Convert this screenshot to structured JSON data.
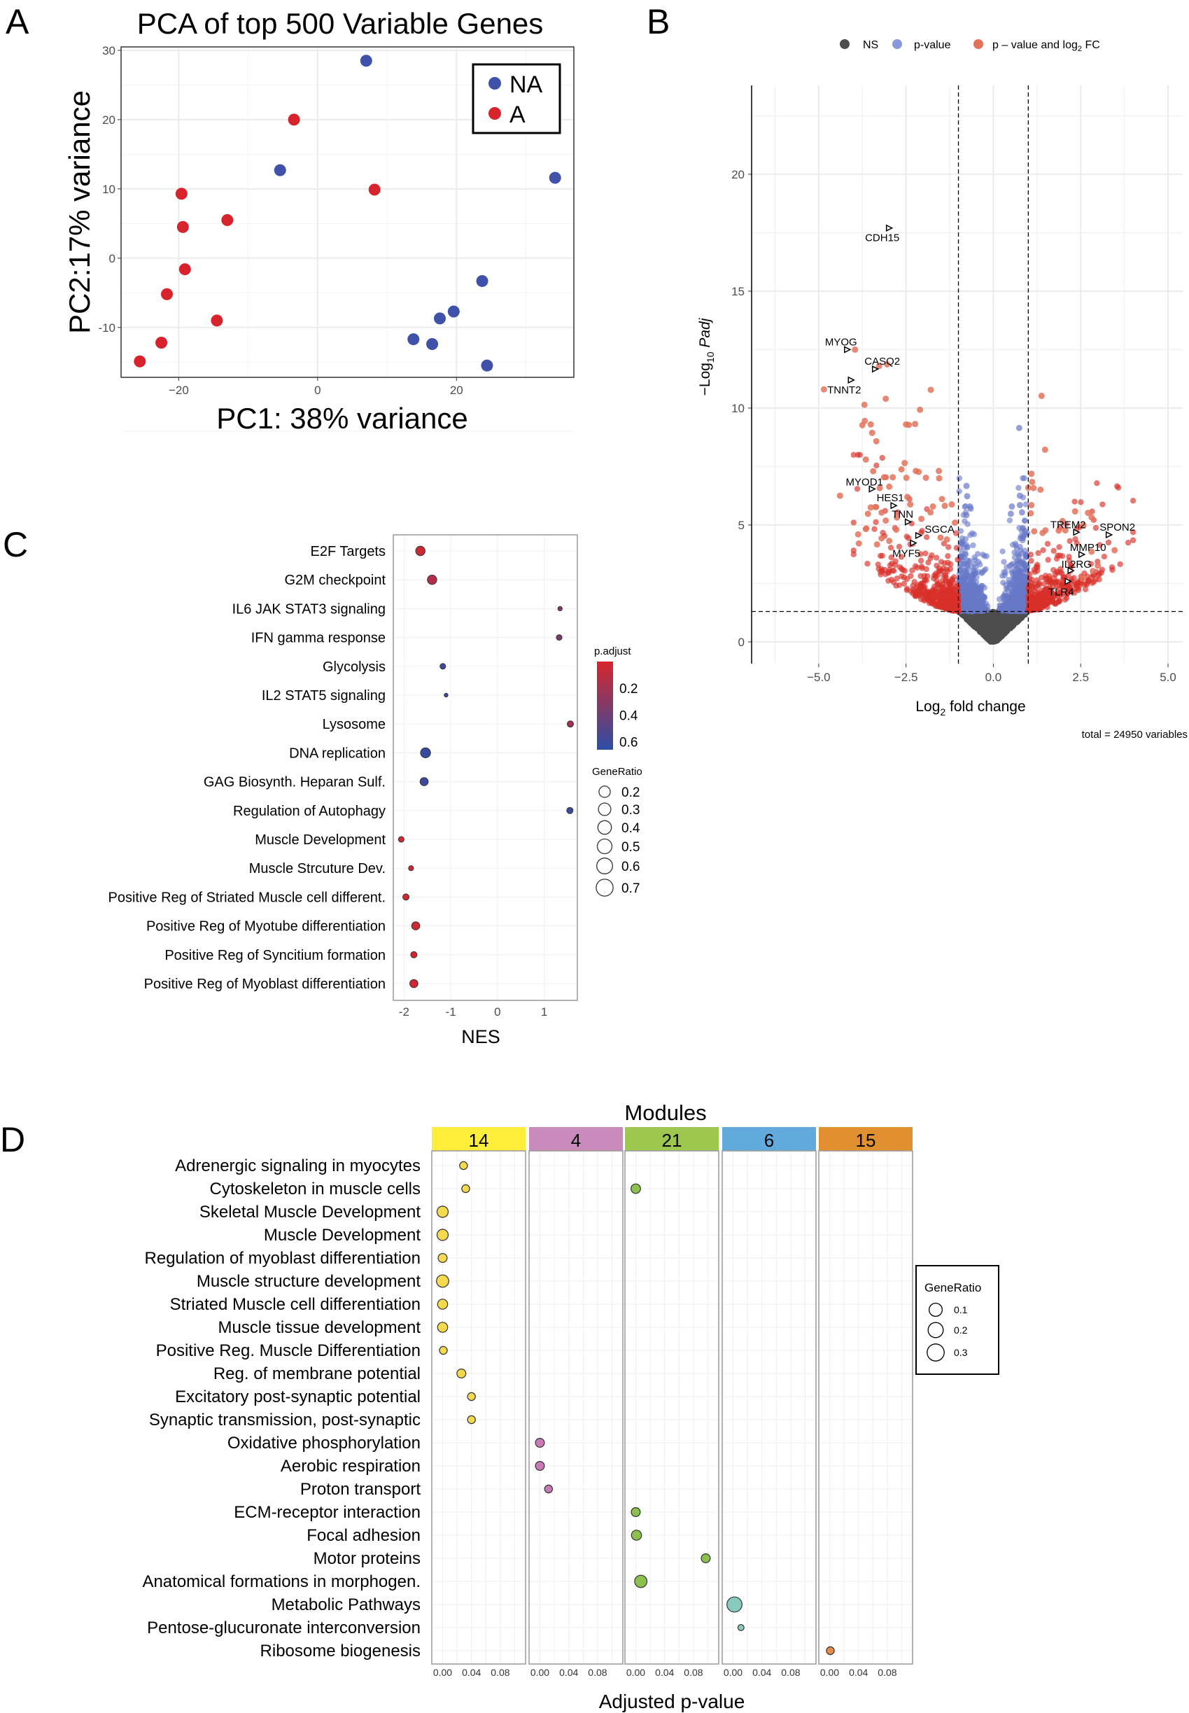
{
  "figure": {
    "panel_labels": [
      "A",
      "B",
      "C",
      "D"
    ]
  },
  "chart_data": [
    {
      "type": "scatter",
      "title": "PCA of top 500 Variable Genes",
      "xlabel": "PC1: 38% variance",
      "ylabel": "PC2:17% variance",
      "xlim": [
        -28.3,
        36.9
      ],
      "ylim": [
        -17.2,
        30.5
      ],
      "xticks": [
        -20,
        0,
        20
      ],
      "xtick_labels": [
        "−20",
        "0",
        "20"
      ],
      "yticks": [
        -10,
        0,
        10,
        20,
        30
      ],
      "ytick_labels": [
        "-10",
        "0",
        "10",
        "20",
        "30"
      ],
      "grid": true,
      "legend": {
        "position": "top-right"
      },
      "series": [
        {
          "name": "NA",
          "color": "#3f51a8",
          "points": [
            [
              7.0,
              28.5
            ],
            [
              -5.4,
              12.7
            ],
            [
              34.2,
              11.6
            ],
            [
              23.7,
              -3.3
            ],
            [
              19.6,
              -7.7
            ],
            [
              17.6,
              -8.7
            ],
            [
              13.8,
              -11.7
            ],
            [
              16.5,
              -12.4
            ],
            [
              24.4,
              -15.5
            ]
          ]
        },
        {
          "name": "A",
          "color": "#d7232b",
          "points": [
            [
              -3.4,
              20.0
            ],
            [
              8.2,
              9.9
            ],
            [
              -19.6,
              9.3
            ],
            [
              -13.0,
              5.5
            ],
            [
              -19.4,
              4.5
            ],
            [
              -19.1,
              -1.6
            ],
            [
              -21.7,
              -5.2
            ],
            [
              -14.5,
              -9.0
            ],
            [
              -22.5,
              -12.2
            ],
            [
              -25.6,
              -14.9
            ]
          ]
        }
      ]
    },
    {
      "type": "scatter",
      "subtype": "volcano",
      "xlabel_main": "Log",
      "xlabel_sub": "2",
      "xlabel_rest": " fold change",
      "ylabel_main": "−Log",
      "ylabel_sub": "10",
      "ylabel_rest": " Padj",
      "xlim": [
        -6.92,
        5.42
      ],
      "ylim": [
        -0.93,
        23.8
      ],
      "xticks": [
        -5,
        -2.5,
        0,
        2.5,
        5
      ],
      "xtick_labels": [
        "−5.0",
        "−2.5",
        "0.0",
        "2.5",
        "5.0"
      ],
      "yticks": [
        0,
        5,
        10,
        15,
        20
      ],
      "ytick_labels": [
        "0",
        "5",
        "10",
        "15",
        "20"
      ],
      "grid": true,
      "thresholds": {
        "log2fc": 1,
        "neg_log10_padj": 1.3
      },
      "legend": {
        "position": "top",
        "entries": [
          {
            "label": "NS",
            "color": "#4d4d4d"
          },
          {
            "label": "p-value",
            "color": "#7f8fd6"
          },
          {
            "label_main": "p – value and log",
            "label_sub": "2",
            "label_rest": " FC",
            "color": "#e2735a"
          }
        ]
      },
      "caption": "total = 24950 variables",
      "total_variables": 24950,
      "colors": {
        "ns": "#4d4d4d",
        "pvalue": "#6878c8",
        "both": "#d9302a",
        "both_light": "#e2735a"
      },
      "labeled_genes": [
        {
          "gene": "CDH15",
          "x": -2.98,
          "y": 17.7
        },
        {
          "gene": "MYOG",
          "x": -4.18,
          "y": 12.5
        },
        {
          "gene": "CASQ2",
          "x": -3.38,
          "y": 11.67
        },
        {
          "gene": "TNNT2",
          "x": -4.07,
          "y": 11.2
        },
        {
          "gene": "MYOD1",
          "x": -3.47,
          "y": 6.54
        },
        {
          "gene": "HES1",
          "x": -2.85,
          "y": 5.83
        },
        {
          "gene": "TNN",
          "x": -2.44,
          "y": 5.13
        },
        {
          "gene": "SGCA",
          "x": -2.14,
          "y": 4.55
        },
        {
          "gene": "MYF5",
          "x": -2.29,
          "y": 4.23
        },
        {
          "gene": "TREM2",
          "x": 2.38,
          "y": 4.69
        },
        {
          "gene": "SPON2",
          "x": 3.31,
          "y": 4.58
        },
        {
          "gene": "MMP10",
          "x": 2.53,
          "y": 3.74
        },
        {
          "gene": "IL2RG",
          "x": 2.22,
          "y": 3.05
        },
        {
          "gene": "TLR4",
          "x": 2.14,
          "y": 2.59
        }
      ],
      "significant_points": [
        [
          -3.96,
          12.5
        ],
        [
          -3.04,
          11.87
        ],
        [
          -3.27,
          11.8
        ],
        [
          -4.85,
          10.8
        ],
        [
          -1.79,
          10.78
        ],
        [
          -3.08,
          10.4
        ],
        [
          -3.69,
          10.14
        ],
        [
          -2.1,
          9.93
        ],
        [
          -3.68,
          9.45
        ],
        [
          -3.75,
          9.27
        ],
        [
          -3.51,
          9.3
        ],
        [
          -2.5,
          9.3
        ],
        [
          -2.42,
          9.28
        ],
        [
          -2.24,
          9.32
        ],
        [
          -3.47,
          8.94
        ],
        [
          -3.35,
          8.58
        ],
        [
          -3.65,
          7.8
        ],
        [
          -2.54,
          7.65
        ],
        [
          -2.63,
          7.38
        ],
        [
          -3.44,
          7.3
        ],
        [
          -2.22,
          7.31
        ],
        [
          -2.14,
          7.27
        ],
        [
          -1.56,
          7.31
        ],
        [
          -2.88,
          7.04
        ],
        [
          -2.49,
          7.02
        ],
        [
          -1.93,
          7.02
        ],
        [
          -1.55,
          7.0
        ],
        [
          -3.13,
          7.04
        ],
        [
          -3.25,
          6.58
        ],
        [
          -2.98,
          6.64
        ],
        [
          -4.39,
          6.25
        ],
        [
          -2.46,
          6.2
        ],
        [
          -1.47,
          6.11
        ],
        [
          -3.51,
          5.75
        ],
        [
          -3.38,
          5.77
        ],
        [
          -2.38,
          5.88
        ],
        [
          -1.73,
          5.79
        ],
        [
          -1.39,
          5.82
        ],
        [
          -1.19,
          5.88
        ],
        [
          -3.59,
          5.48
        ],
        [
          -3.2,
          5.53
        ],
        [
          -1.8,
          5.54
        ],
        [
          -3.08,
          5.19
        ],
        [
          -2.76,
          5.32
        ],
        [
          -2.06,
          5.26
        ],
        [
          -3.65,
          4.83
        ],
        [
          -3.87,
          4.6
        ],
        [
          -2.78,
          4.8
        ],
        [
          -1.1,
          5.1
        ],
        [
          -3.85,
          4.21
        ],
        [
          -3.2,
          4.43
        ],
        [
          -2.98,
          4.32
        ],
        [
          -3.33,
          4.17
        ],
        [
          -1.51,
          4.46
        ],
        [
          -1.33,
          4.38
        ],
        [
          1.38,
          10.52
        ],
        [
          1.48,
          8.22
        ],
        [
          1.09,
          7.19
        ],
        [
          1.11,
          6.84
        ],
        [
          1.15,
          6.58
        ],
        [
          1.0,
          6.59
        ],
        [
          1.35,
          6.51
        ],
        [
          1.09,
          5.85
        ],
        [
          1.07,
          5.5
        ],
        [
          2.34,
          5.58
        ],
        [
          2.71,
          5.52
        ],
        [
          2.81,
          5.33
        ],
        [
          1.98,
          5.17
        ],
        [
          2.58,
          4.98
        ],
        [
          2.06,
          4.77
        ],
        [
          1.87,
          4.76
        ],
        [
          1.49,
          4.77
        ],
        [
          1.17,
          4.73
        ],
        [
          1.41,
          4.66
        ],
        [
          3.47,
          3.92
        ],
        [
          2.81,
          3.86
        ],
        [
          2.99,
          3.26
        ],
        [
          2.85,
          3.03
        ],
        [
          2.55,
          2.7
        ]
      ],
      "pvalue_points": [
        [
          0.74,
          9.15
        ],
        [
          -0.77,
          6.67
        ],
        [
          -0.75,
          6.23
        ],
        [
          -0.67,
          5.79
        ],
        [
          -0.65,
          5.7
        ],
        [
          -0.77,
          5.42
        ],
        [
          0.76,
          6.25
        ],
        [
          0.76,
          5.85
        ],
        [
          0.53,
          5.79
        ],
        [
          0.5,
          5.48
        ],
        [
          0.82,
          5.54
        ]
      ]
    },
    {
      "type": "scatter",
      "subtype": "dotplot",
      "xlabel": "NES",
      "xlim": [
        -2.23,
        1.71
      ],
      "xticks": [
        -2,
        -1,
        0,
        1
      ],
      "xtick_labels": [
        "-2",
        "-1",
        "0",
        "1"
      ],
      "categories": [
        "E2F Targets",
        "G2M checkpoint",
        "IL6 JAK STAT3 signaling",
        "IFN gamma response",
        "Glycolysis",
        "IL2 STAT5 signaling",
        "Lysosome",
        "DNA replication",
        "GAG Biosynth. Heparan Sulf.",
        "Regulation of Autophagy",
        "Muscle Development",
        "Muscle Strcuture Dev.",
        "Positive Reg of Striated Muscle cell different.",
        "Positive Reg of Myotube differentiation",
        "Positive Reg of Syncitium formation",
        "Positive Reg of Myoblast differentiation"
      ],
      "nes": [
        -1.65,
        -1.4,
        1.34,
        1.32,
        -1.17,
        -1.1,
        1.56,
        -1.54,
        -1.57,
        1.55,
        -2.06,
        -1.85,
        -1.96,
        -1.75,
        -1.79,
        -1.79
      ],
      "p_adjust": [
        0.05,
        0.15,
        0.35,
        0.35,
        0.6,
        0.6,
        0.2,
        0.62,
        0.6,
        0.6,
        0.02,
        0.02,
        0.02,
        0.03,
        0.02,
        0.03
      ],
      "gene_ratio": [
        0.55,
        0.55,
        0.15,
        0.25,
        0.25,
        0.1,
        0.3,
        0.6,
        0.45,
        0.3,
        0.25,
        0.2,
        0.3,
        0.45,
        0.3,
        0.45
      ],
      "color_legend": {
        "title": "p.adjust",
        "range": [
          0,
          0.66
        ],
        "ticks": [
          0.2,
          0.4,
          0.6
        ],
        "tick_labels": [
          "0.2",
          "0.4",
          "0.6"
        ],
        "low_color": "#d7262c",
        "high_color": "#2c4ea6"
      },
      "size_legend": {
        "title": "GeneRatio",
        "values": [
          0.2,
          0.3,
          0.4,
          0.5,
          0.6,
          0.7
        ],
        "labels": [
          "0.2",
          "0.3",
          "0.4",
          "0.5",
          "0.6",
          "0.7"
        ]
      }
    },
    {
      "type": "scatter",
      "subtype": "faceted-dotplot",
      "title": "Modules",
      "xlabel": "Adjusted p-value",
      "xlim": [
        -0.015,
        0.115
      ],
      "xticks": [
        0,
        0.04,
        0.08
      ],
      "xtick_labels": [
        "0.00",
        "0.04",
        "0.08"
      ],
      "modules": [
        {
          "name": "14",
          "strip_color": "#fcee3a",
          "dot_color": "#f5d94e"
        },
        {
          "name": "4",
          "strip_color": "#c98bbb",
          "dot_color": "#c97ab8"
        },
        {
          "name": "21",
          "strip_color": "#9dc74f",
          "dot_color": "#8cc04f"
        },
        {
          "name": "6",
          "strip_color": "#62a9dc",
          "dot_color": "#86cbbe"
        },
        {
          "name": "15",
          "strip_color": "#e0902e",
          "dot_color": "#e38b4a"
        }
      ],
      "terms": [
        "Adrenergic signaling in myocytes",
        "Cytoskeleton in muscle cells",
        "Skeletal Muscle Development",
        "Muscle Development",
        "Regulation of myoblast differentiation",
        "Muscle structure development",
        "Striated Muscle cell differentiation",
        "Muscle tissue development",
        "Positive Reg. Muscle Differentiation",
        "Reg. of membrane potential",
        "Excitatory post-synaptic potential",
        "Synaptic transmission, post-synaptic",
        "Oxidative phosphorylation",
        "Aerobic respiration",
        "Proton transport",
        "ECM-receptor interaction",
        "Focal adhesion",
        "Motor proteins",
        "Anatomical formations in morphogen.",
        "Metabolic Pathways",
        "Pentose-glucuronate interconversion",
        "Ribosome biogenesis"
      ],
      "points": [
        {
          "term": 0,
          "module": 0,
          "padj": 0.029,
          "gene_ratio": 0.05
        },
        {
          "term": 1,
          "module": 0,
          "padj": 0.032,
          "gene_ratio": 0.05
        },
        {
          "term": 1,
          "module": 2,
          "padj": 0.0,
          "gene_ratio": 0.08
        },
        {
          "term": 2,
          "module": 0,
          "padj": 0.0,
          "gene_ratio": 0.11
        },
        {
          "term": 3,
          "module": 0,
          "padj": 0.0,
          "gene_ratio": 0.11
        },
        {
          "term": 4,
          "module": 0,
          "padj": 0.0,
          "gene_ratio": 0.07
        },
        {
          "term": 5,
          "module": 0,
          "padj": 0.0,
          "gene_ratio": 0.13
        },
        {
          "term": 6,
          "module": 0,
          "padj": 0.0,
          "gene_ratio": 0.09
        },
        {
          "term": 7,
          "module": 0,
          "padj": 0.0,
          "gene_ratio": 0.09
        },
        {
          "term": 8,
          "module": 0,
          "padj": 0.001,
          "gene_ratio": 0.05
        },
        {
          "term": 9,
          "module": 0,
          "padj": 0.026,
          "gene_ratio": 0.07
        },
        {
          "term": 10,
          "module": 0,
          "padj": 0.04,
          "gene_ratio": 0.05
        },
        {
          "term": 11,
          "module": 0,
          "padj": 0.04,
          "gene_ratio": 0.05
        },
        {
          "term": 12,
          "module": 1,
          "padj": 0.0,
          "gene_ratio": 0.07
        },
        {
          "term": 13,
          "module": 1,
          "padj": 0.0,
          "gene_ratio": 0.07
        },
        {
          "term": 14,
          "module": 1,
          "padj": 0.012,
          "gene_ratio": 0.05
        },
        {
          "term": 15,
          "module": 2,
          "padj": 0.0,
          "gene_ratio": 0.07
        },
        {
          "term": 16,
          "module": 2,
          "padj": 0.001,
          "gene_ratio": 0.09
        },
        {
          "term": 17,
          "module": 2,
          "padj": 0.097,
          "gene_ratio": 0.07
        },
        {
          "term": 18,
          "module": 2,
          "padj": 0.007,
          "gene_ratio": 0.13
        },
        {
          "term": 19,
          "module": 3,
          "padj": 0.002,
          "gene_ratio": 0.18
        },
        {
          "term": 20,
          "module": 3,
          "padj": 0.011,
          "gene_ratio": 0.02
        },
        {
          "term": 21,
          "module": 4,
          "padj": 0.001,
          "gene_ratio": 0.05
        }
      ],
      "size_legend": {
        "title": "GeneRatio",
        "values": [
          0.1,
          0.2,
          0.3
        ],
        "labels": [
          "0.1",
          "0.2",
          "0.3"
        ],
        "position": "right"
      }
    }
  ]
}
